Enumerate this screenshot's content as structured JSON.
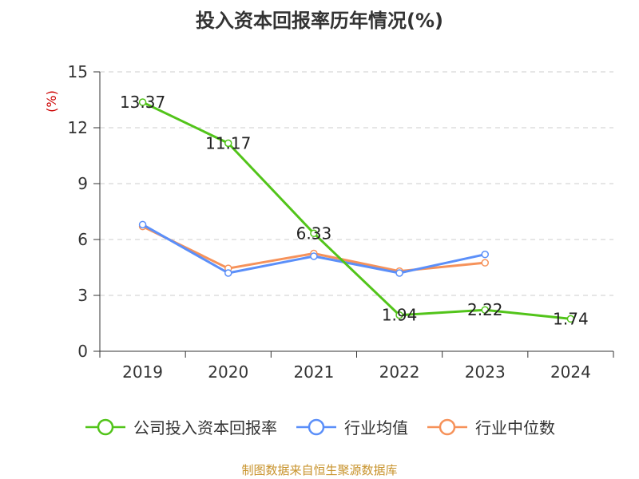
{
  "chart_data": {
    "type": "line",
    "title": "投入资本回报率历年情况(%)",
    "ylabel": "(%)",
    "ylim": [
      0,
      15
    ],
    "yticks": [
      0,
      3,
      6,
      9,
      12,
      15
    ],
    "categories": [
      "2019",
      "2020",
      "2021",
      "2022",
      "2023",
      "2024"
    ],
    "series": [
      {
        "name": "公司投入资本回报率",
        "color": "#52c41a",
        "values": [
          13.37,
          11.17,
          6.33,
          1.94,
          2.22,
          1.74
        ],
        "labels": true
      },
      {
        "name": "行业均值",
        "color": "#5b8ff9",
        "values": [
          6.8,
          4.2,
          5.1,
          4.2,
          5.2,
          null
        ],
        "labels": false
      },
      {
        "name": "行业中位数",
        "color": "#f6925a",
        "values": [
          6.7,
          4.45,
          5.25,
          4.3,
          4.75,
          null
        ],
        "labels": false
      }
    ],
    "grid": true,
    "legend": "bottom"
  },
  "ylabel_color": "#cc0000",
  "source": {
    "text": "制图数据来自恒生聚源数据库",
    "color": "#c8932c"
  }
}
